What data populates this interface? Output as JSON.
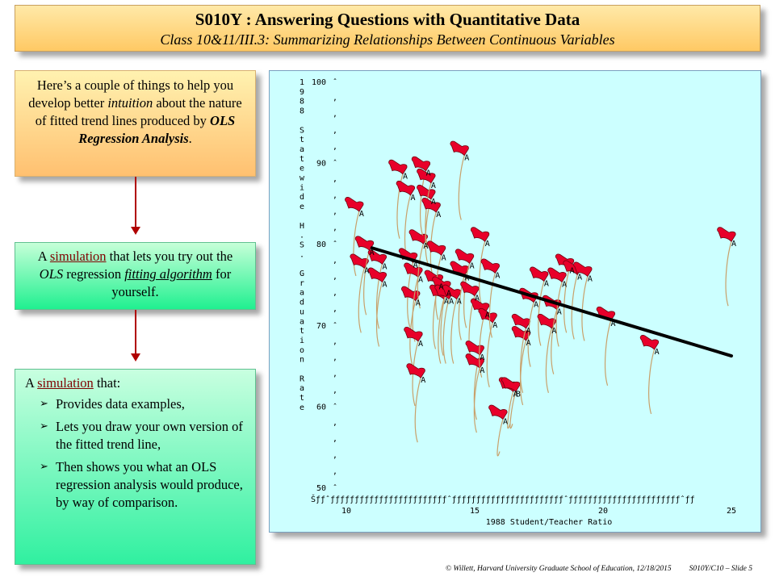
{
  "title": {
    "main": "S010Y : Answering Questions with Quantitative Data",
    "sub": "Class 10&11/III.3: Summarizing Relationships Between Continuous Variables"
  },
  "box1": {
    "t1": "Here’s a couple of things to help you develop better ",
    "t2": "intuition",
    "t3": " about the nature of fitted trend lines produced by ",
    "t4": "OLS Regression Analysis",
    "t5": "."
  },
  "box2": {
    "t1": "A ",
    "link": "simulation",
    "t2": " that lets you try out the ",
    "t3": "OLS",
    "t4": " regression ",
    "t5": "fitting algorithm",
    "t6": " for yourself."
  },
  "box3": {
    "t1": "A ",
    "link": "simulation",
    "t2": " that:",
    "bullets": [
      "Provides data examples,",
      "Lets you draw your own version of the fitted trend line,",
      "Then shows you what an OLS regression analysis would produce, by way of comparison."
    ],
    "bullet_glyph": "➢"
  },
  "footer": {
    "left": "© Willett, Harvard University Graduate School of Education, 12/18/2015",
    "right": "S010Y/C10 – Slide 5"
  },
  "colors": {
    "fit_line": "#000000",
    "marker": "#e8002a",
    "points_text": "#000000",
    "plot_bg": "#ccffff"
  },
  "chart_data": {
    "type": "scatter",
    "xlabel": "1988 Student/Teacher Ratio",
    "ylabel_vertical": "1988 Statewide H.S. Graduation Rate",
    "xlim": [
      9.3,
      26.3
    ],
    "ylim": [
      50,
      100
    ],
    "xticks": [
      10,
      15,
      20,
      25
    ],
    "yticks": [
      100,
      90,
      80,
      70,
      60,
      50
    ],
    "axis_row": "Šƒƒˆƒƒƒƒƒƒƒƒƒƒƒƒƒƒƒƒƒƒƒƒƒƒƒƒˆƒƒƒƒƒƒƒƒƒƒƒƒƒƒƒƒƒƒƒƒƒƒƒˆƒƒƒƒƒƒƒƒƒƒƒƒƒƒƒƒƒƒƒƒƒƒƒˆƒƒ",
    "fit_line": {
      "x1": 11.0,
      "y1": 79.5,
      "x2": 25.0,
      "y2": 66.2
    },
    "points": [
      {
        "x": 10.5,
        "y": 84.0,
        "label": "A"
      },
      {
        "x": 10.7,
        "y": 77.0,
        "label": "A"
      },
      {
        "x": 10.9,
        "y": 79.2,
        "label": "A"
      },
      {
        "x": 11.4,
        "y": 77.5,
        "label": "A"
      },
      {
        "x": 11.4,
        "y": 75.3,
        "label": "A"
      },
      {
        "x": 12.2,
        "y": 88.6,
        "label": "A"
      },
      {
        "x": 12.5,
        "y": 86.0,
        "label": "A"
      },
      {
        "x": 12.6,
        "y": 77.7,
        "label": "A"
      },
      {
        "x": 12.7,
        "y": 73.0,
        "label": "A"
      },
      {
        "x": 12.8,
        "y": 75.9,
        "label": "A"
      },
      {
        "x": 12.8,
        "y": 68.0,
        "label": "A"
      },
      {
        "x": 12.9,
        "y": 63.5,
        "label": "A"
      },
      {
        "x": 13.0,
        "y": 80.0,
        "label": "A"
      },
      {
        "x": 13.1,
        "y": 89.0,
        "label": "A"
      },
      {
        "x": 13.3,
        "y": 85.5,
        "label": "A"
      },
      {
        "x": 13.3,
        "y": 87.5,
        "label": "A"
      },
      {
        "x": 13.5,
        "y": 83.9,
        "label": "A"
      },
      {
        "x": 13.6,
        "y": 75.0,
        "label": "A"
      },
      {
        "x": 13.7,
        "y": 78.6,
        "label": "A"
      },
      {
        "x": 13.8,
        "y": 73.2,
        "label": "A"
      },
      {
        "x": 13.9,
        "y": 74.2,
        "label": "A"
      },
      {
        "x": 14.0,
        "y": 73.2,
        "label": "A"
      },
      {
        "x": 14.3,
        "y": 73.2,
        "label": "A"
      },
      {
        "x": 14.6,
        "y": 90.9,
        "label": "A"
      },
      {
        "x": 14.6,
        "y": 76.1,
        "label": "A"
      },
      {
        "x": 14.8,
        "y": 77.6,
        "label": "A"
      },
      {
        "x": 15.0,
        "y": 73.6,
        "label": "A"
      },
      {
        "x": 15.2,
        "y": 66.3,
        "label": "A"
      },
      {
        "x": 15.2,
        "y": 64.7,
        "label": "A"
      },
      {
        "x": 15.4,
        "y": 80.3,
        "label": "A"
      },
      {
        "x": 15.4,
        "y": 71.5,
        "label": "A"
      },
      {
        "x": 15.7,
        "y": 70.3,
        "label": "A"
      },
      {
        "x": 15.8,
        "y": 76.4,
        "label": "A"
      },
      {
        "x": 16.1,
        "y": 58.4,
        "label": "A"
      },
      {
        "x": 16.5,
        "y": 61.8,
        "label": "A"
      },
      {
        "x": 16.6,
        "y": 61.8,
        "label": "B"
      },
      {
        "x": 17.0,
        "y": 68.1,
        "label": "A"
      },
      {
        "x": 17.0,
        "y": 69.6,
        "label": "A"
      },
      {
        "x": 17.3,
        "y": 72.8,
        "label": "A"
      },
      {
        "x": 17.7,
        "y": 75.4,
        "label": "A"
      },
      {
        "x": 18.0,
        "y": 69.6,
        "label": "A"
      },
      {
        "x": 18.2,
        "y": 71.9,
        "label": "A"
      },
      {
        "x": 18.4,
        "y": 75.3,
        "label": "A"
      },
      {
        "x": 18.7,
        "y": 77.0,
        "label": "A"
      },
      {
        "x": 19.0,
        "y": 76.2,
        "label": "A"
      },
      {
        "x": 19.4,
        "y": 76.0,
        "label": "A"
      },
      {
        "x": 20.3,
        "y": 70.5,
        "label": "A"
      },
      {
        "x": 22.0,
        "y": 67.0,
        "label": "A"
      },
      {
        "x": 25.0,
        "y": 80.3,
        "label": "A"
      }
    ]
  }
}
